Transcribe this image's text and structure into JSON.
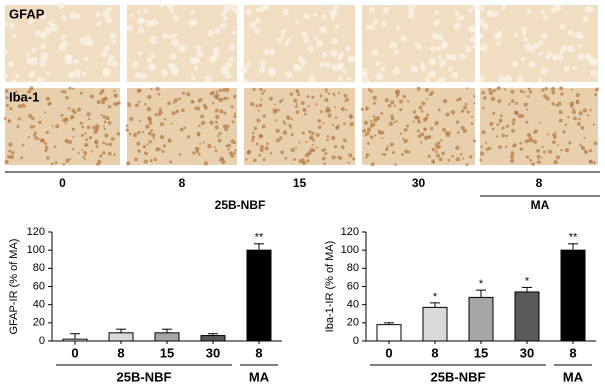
{
  "micrographs": {
    "rows": [
      "GFAP",
      "Iba-1"
    ],
    "columns": [
      "0",
      "8",
      "15",
      "30",
      "8"
    ],
    "groups": [
      "25B-NBF",
      "MA"
    ]
  },
  "chart_data": [
    {
      "type": "bar",
      "ylabel": "GFAP-IR (% of MA)",
      "categories": [
        "0",
        "8",
        "15",
        "30",
        "8"
      ],
      "values": [
        2,
        9,
        9,
        6,
        100
      ],
      "errors": [
        6,
        4,
        4,
        2,
        7
      ],
      "colors": [
        "#ffffff",
        "#d9d9d9",
        "#a6a6a6",
        "#595959",
        "#000000"
      ],
      "annotations": [
        null,
        null,
        null,
        null,
        "**"
      ],
      "groups": [
        {
          "label": "25B-NBF",
          "size": 4
        },
        {
          "label": "MA",
          "size": 1
        }
      ],
      "ylim": [
        0,
        120
      ],
      "yticks": [
        0,
        20,
        40,
        60,
        80,
        100,
        120
      ]
    },
    {
      "type": "bar",
      "ylabel": "Iba-1-IR (% of MA)",
      "categories": [
        "0",
        "8",
        "15",
        "30",
        "8"
      ],
      "values": [
        18,
        37,
        48,
        54,
        100
      ],
      "errors": [
        2,
        5,
        8,
        5,
        7
      ],
      "colors": [
        "#ffffff",
        "#d9d9d9",
        "#a6a6a6",
        "#595959",
        "#000000"
      ],
      "annotations": [
        null,
        "*",
        "*",
        "*",
        "**"
      ],
      "groups": [
        {
          "label": "25B-NBF",
          "size": 4
        },
        {
          "label": "MA",
          "size": 1
        }
      ],
      "ylim": [
        0,
        120
      ],
      "yticks": [
        0,
        20,
        40,
        60,
        80,
        100,
        120
      ]
    }
  ]
}
